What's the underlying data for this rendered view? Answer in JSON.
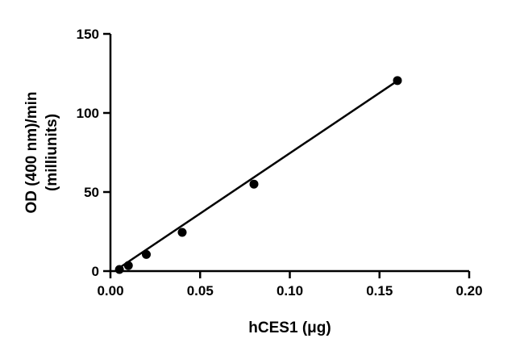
{
  "chart_data": {
    "type": "scatter",
    "title": "",
    "xlabel": "hCES1 (μg)",
    "ylabel_lines": [
      "OD (400 nm)/min",
      "(milliunits)"
    ],
    "xlim": [
      0,
      0.2
    ],
    "ylim": [
      0,
      150
    ],
    "x_ticks": [
      0,
      0.05,
      0.1,
      0.15,
      0.2
    ],
    "x_tick_labels": [
      "0.00",
      "0.05",
      "0.10",
      "0.15",
      "0.20"
    ],
    "y_ticks": [
      0,
      50,
      100,
      150
    ],
    "y_tick_labels": [
      "0",
      "50",
      "100",
      "150"
    ],
    "grid": false,
    "legend": "none",
    "series": [
      {
        "x": [
          0.005,
          0.01,
          0.02,
          0.04,
          0.08,
          0.16
        ],
        "y": [
          1,
          3.5,
          10.5,
          24.5,
          55,
          120.5
        ]
      }
    ],
    "fit_line": {
      "x": [
        0.005,
        0.16
      ],
      "y": [
        2.1,
        120.3
      ]
    },
    "colors": {
      "marker": "#000000",
      "line": "#000000",
      "axis": "#000000"
    }
  }
}
